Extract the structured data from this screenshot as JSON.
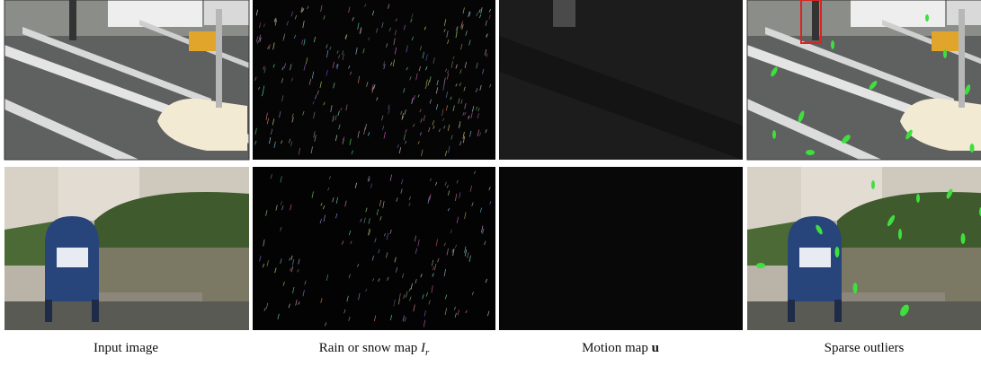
{
  "figure": {
    "captions": [
      {
        "text": "Input image"
      },
      {
        "text": "Rain or snow map",
        "symbol": "I",
        "subscript": "r"
      },
      {
        "text": "Motion map",
        "symbol": "u"
      },
      {
        "text": "Sparse outliers"
      }
    ]
  }
}
